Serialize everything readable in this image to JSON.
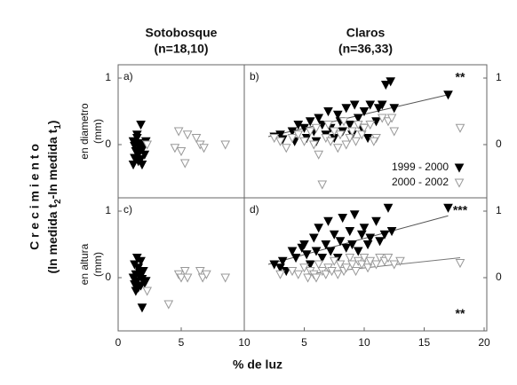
{
  "figure": {
    "xlabel": "% de luz",
    "ylabel": "C r e c i m i e n t o",
    "ylabel_parts": [
      "(ln medida t",
      "2",
      "-ln medida t",
      "1",
      ")"
    ]
  },
  "chart_data": [
    {
      "type": "scatter",
      "panel_label": "a)",
      "title": "Sotobosque",
      "subtitle": "(n=18,10)",
      "ylabel": [
        "en diametro",
        "(mm)"
      ],
      "yaxis_side": "left",
      "xlim": [
        0,
        10
      ],
      "ylim": [
        -0.8,
        1.2
      ],
      "yticks": [
        0,
        1
      ],
      "series": [
        {
          "color": "#000000",
          "filled": true,
          "x": [
            1.8,
            1.5,
            1.2,
            1.6,
            2,
            1.3,
            1.7,
            1.9,
            1.4,
            1.6,
            2.1,
            1.3,
            1.8,
            1.2,
            1.9,
            1.5,
            2.2,
            1.6
          ],
          "values": [
            0.3,
            0.15,
            0.05,
            0.02,
            0,
            -0.02,
            -0.05,
            -0.08,
            -0.1,
            -0.15,
            -0.15,
            -0.2,
            -0.22,
            -0.3,
            -0.3,
            0.1,
            0.05,
            -0.25
          ]
        },
        {
          "color": "#999999",
          "filled": false,
          "x": [
            2.3,
            4.8,
            5.5,
            4.5,
            5,
            5.3,
            6.2,
            6.5,
            6.8,
            8.5
          ],
          "values": [
            0,
            0.2,
            0.15,
            -0.05,
            -0.1,
            -0.28,
            0.1,
            0,
            -0.05,
            0
          ]
        }
      ]
    },
    {
      "type": "scatter",
      "panel_label": "b)",
      "title": "Claros",
      "subtitle": "(n=36,33)",
      "yaxis_side": "right",
      "legend": "lower right",
      "xlim": [
        0,
        20
      ],
      "ylim": [
        -0.8,
        1.2
      ],
      "yticks": [
        0,
        1
      ],
      "annotations": [
        {
          "text": "**",
          "x": 18,
          "y": 1
        }
      ],
      "series": [
        {
          "name": "1999 - 2000",
          "color": "#000000",
          "filled": true,
          "x": [
            2.5,
            3,
            3.2,
            4,
            4.2,
            4.5,
            5,
            5.2,
            5.5,
            5.8,
            6,
            6.2,
            6.5,
            6.8,
            7,
            7.2,
            7.5,
            7.8,
            8,
            8.2,
            8.5,
            8.8,
            9,
            9.2,
            9.5,
            9.8,
            10,
            10.3,
            10.5,
            11,
            11.2,
            11.5,
            11.8,
            12.2,
            12.5,
            17
          ],
          "values": [
            0.12,
            0.15,
            0.08,
            0.2,
            0.05,
            0.3,
            0.25,
            0.1,
            0.35,
            0.2,
            0.05,
            0.4,
            0.3,
            0.15,
            0.5,
            0.25,
            0.1,
            0.45,
            0.35,
            0.2,
            0.55,
            0.3,
            0.15,
            0.6,
            0.4,
            0.25,
            0.5,
            0.1,
            0.6,
            0.35,
            0.55,
            0.6,
            0.9,
            0.95,
            0.55,
            0.75
          ]
        },
        {
          "name": "2000 - 2002",
          "color": "#999999",
          "filled": false,
          "x": [
            2.5,
            3,
            3.5,
            4,
            4.5,
            5,
            5.5,
            5.8,
            6,
            6.2,
            6.5,
            6.8,
            7,
            7.2,
            7.5,
            8,
            8.3,
            8.5,
            8.8,
            9,
            9.3,
            9.5,
            9.8,
            10,
            10.5,
            11,
            11.5,
            12,
            12.3,
            12.5,
            10.8,
            7.8,
            18
          ],
          "values": [
            0.1,
            0.05,
            -0.05,
            0.1,
            0.15,
            0.05,
            0.2,
            0,
            0.25,
            -0.15,
            -0.6,
            0.1,
            0.3,
            0.05,
            0.2,
            0.15,
            0.35,
            0,
            0.1,
            0.2,
            0.05,
            0.3,
            0.15,
            0.25,
            0.3,
            0.1,
            0.4,
            0.35,
            0.4,
            0.2,
            0.05,
            -0.05,
            0.25
          ]
        }
      ],
      "trend_lines": [
        {
          "color": "#555555",
          "x": [
            2,
            17
          ],
          "values": [
            0.12,
            0.75
          ]
        }
      ]
    },
    {
      "type": "scatter",
      "panel_label": "c)",
      "ylabel": [
        "en altura",
        "(mm)"
      ],
      "yaxis_side": "left",
      "xlim": [
        0,
        10
      ],
      "ylim": [
        -0.8,
        1.2
      ],
      "xticks": [
        0,
        5,
        10
      ],
      "yticks": [
        0,
        1
      ],
      "series": [
        {
          "color": "#000000",
          "filled": true,
          "x": [
            1.5,
            1.8,
            1.3,
            1.6,
            2,
            1.4,
            1.7,
            1.2,
            1.9,
            1.5,
            2.1,
            1.3,
            1.8,
            1.6,
            2.2,
            1.4,
            1.9,
            1.7
          ],
          "values": [
            0.3,
            0.25,
            0.2,
            0.15,
            0.1,
            0.05,
            0.02,
            0,
            -0.02,
            -0.05,
            -0.08,
            -0.1,
            -0.12,
            -0.15,
            -0.05,
            -0.2,
            -0.45,
            0.08
          ]
        },
        {
          "color": "#999999",
          "filled": false,
          "x": [
            2.3,
            4,
            4.8,
            5,
            5.3,
            5.5,
            6.5,
            6.7,
            7,
            8.5
          ],
          "values": [
            -0.2,
            -0.4,
            0.05,
            0,
            0.1,
            0,
            0.1,
            0,
            0.05,
            0
          ]
        }
      ]
    },
    {
      "type": "scatter",
      "panel_label": "d)",
      "yaxis_side": "right",
      "xlim": [
        0,
        20
      ],
      "ylim": [
        -0.8,
        1.2
      ],
      "xticks": [
        5,
        10,
        15,
        20
      ],
      "yticks": [
        0,
        1
      ],
      "annotations": [
        {
          "text": "***",
          "x": 18,
          "y": 1
        },
        {
          "text": "**",
          "x": 18,
          "y": -0.55
        }
      ],
      "series": [
        {
          "color": "#000000",
          "filled": true,
          "x": [
            2.5,
            3,
            3.2,
            3.5,
            4,
            4.3,
            4.8,
            5,
            5.2,
            5.5,
            5.8,
            6,
            6.2,
            6.5,
            6.8,
            7,
            7.2,
            7.5,
            7.8,
            8,
            8.2,
            8.5,
            8.8,
            9,
            9.2,
            9.5,
            9.8,
            10,
            10.3,
            10.5,
            11,
            11.3,
            11.7,
            12,
            12.3,
            17
          ],
          "values": [
            0.2,
            0.15,
            0.25,
            0.1,
            0.4,
            0.3,
            0.45,
            0.5,
            0.35,
            0.2,
            0.6,
            0.4,
            0.75,
            0.3,
            0.5,
            0.85,
            0.4,
            0.65,
            0.3,
            0.55,
            0.9,
            0.45,
            0.7,
            0.5,
            0.95,
            0.4,
            0.65,
            0.75,
            0.5,
            0.6,
            0.85,
            0.55,
            0.65,
            1.05,
            0.7,
            1.05
          ]
        },
        {
          "color": "#999999",
          "filled": false,
          "x": [
            3,
            4,
            4.5,
            5,
            5.3,
            5.5,
            5.8,
            6,
            6.2,
            6.5,
            6.8,
            7,
            7.3,
            7.5,
            7.8,
            8,
            8.3,
            8.5,
            8.8,
            9,
            9.3,
            9.5,
            9.8,
            10,
            10.3,
            10.5,
            11,
            11.3,
            11.7,
            12,
            12.5,
            13,
            18
          ],
          "values": [
            0.05,
            0.1,
            0.05,
            0.15,
            0,
            0.1,
            0.05,
            0,
            0.2,
            0.1,
            0.05,
            0.15,
            0.1,
            0.25,
            0.05,
            0.2,
            0.1,
            0.15,
            0.3,
            0.2,
            0.1,
            0.25,
            0.2,
            0.3,
            0.15,
            0.25,
            0.2,
            0.3,
            0.25,
            0.3,
            0.2,
            0.25,
            0.22
          ]
        }
      ],
      "trend_lines": [
        {
          "color": "#555555",
          "x": [
            2,
            17
          ],
          "values": [
            0.2,
            0.93
          ]
        },
        {
          "color": "#777777",
          "x": [
            5,
            18
          ],
          "values": [
            0.05,
            0.3
          ]
        }
      ]
    }
  ]
}
